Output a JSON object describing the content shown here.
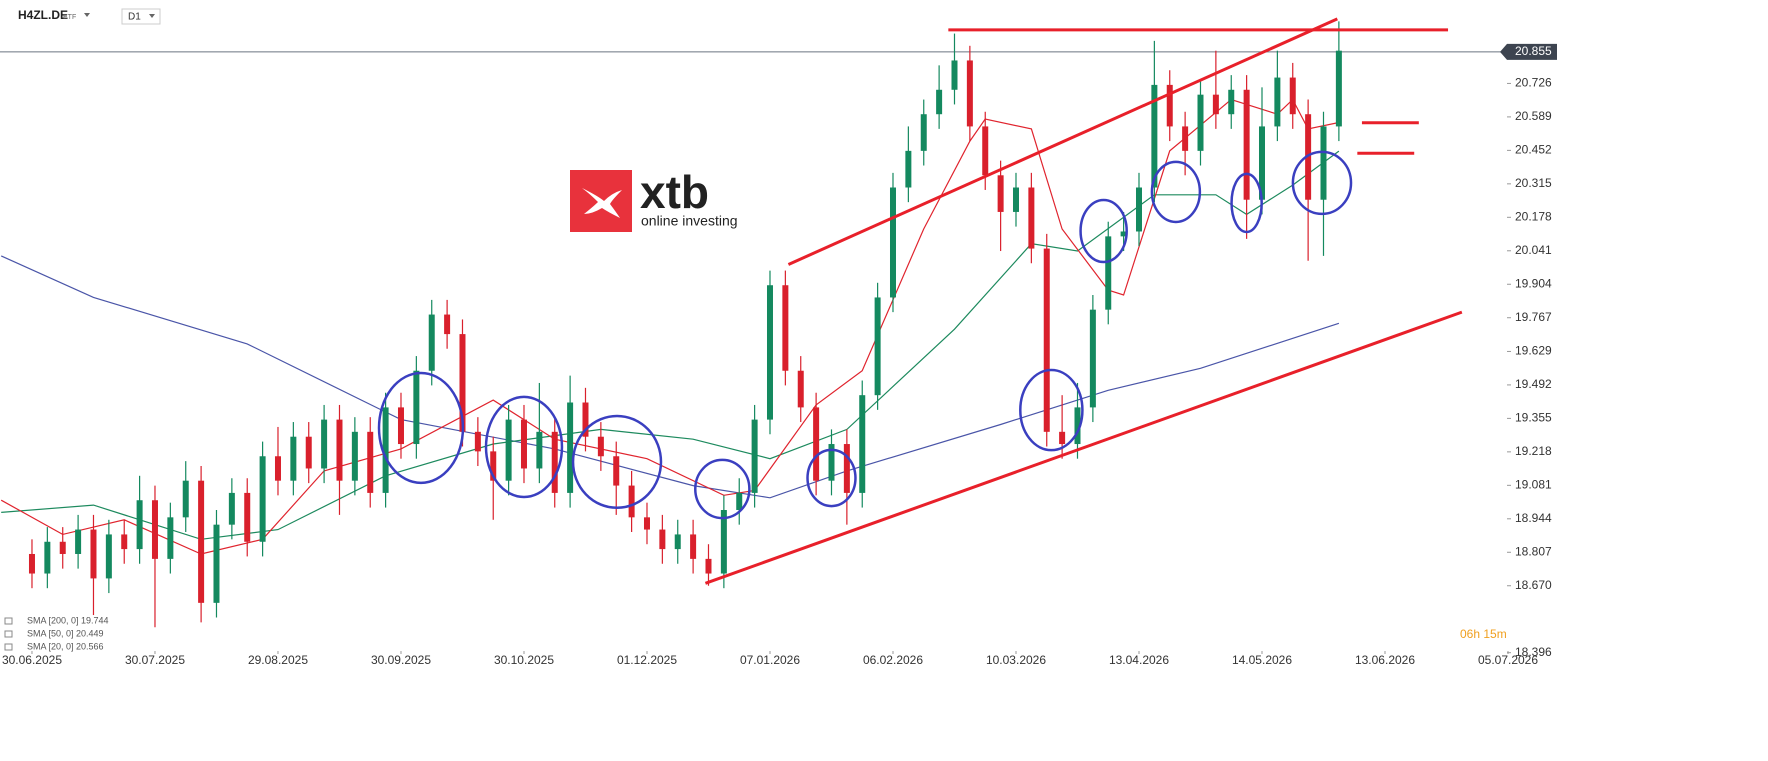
{
  "header": {
    "symbol": "H4ZL.DE",
    "kind": "ETF",
    "interval": "D1"
  },
  "logo": {
    "brand": "xtb",
    "tagline": "online investing"
  },
  "timer": "06h 15m",
  "chart_data": {
    "type": "candlestick",
    "up_color": "#14895f",
    "down_color": "#d9202c",
    "x": [
      0,
      1,
      2,
      3,
      4,
      5,
      6,
      7,
      8,
      9,
      10,
      11,
      12,
      13,
      14,
      15,
      16,
      17,
      18,
      19,
      20,
      21,
      22,
      23,
      24,
      25,
      26,
      27,
      28,
      29,
      30,
      31,
      32,
      33,
      34,
      35,
      36,
      37,
      38,
      39,
      40,
      41,
      42,
      43,
      44,
      45,
      46,
      47,
      48,
      49,
      50,
      51,
      52,
      53,
      54,
      55,
      56,
      57,
      58,
      59,
      60,
      61,
      62,
      63,
      64,
      65,
      66,
      67,
      68,
      69,
      70,
      71,
      72,
      73,
      74,
      75,
      76,
      77,
      78,
      79,
      80,
      81,
      82,
      83,
      84,
      85
    ],
    "open": [
      18.8,
      18.72,
      18.85,
      18.8,
      18.9,
      18.7,
      18.88,
      18.82,
      19.02,
      18.78,
      18.95,
      19.1,
      18.6,
      18.92,
      19.05,
      18.85,
      19.2,
      19.1,
      19.28,
      19.15,
      19.35,
      19.1,
      19.3,
      19.05,
      19.4,
      19.25,
      19.55,
      19.78,
      19.7,
      19.3,
      19.22,
      19.1,
      19.35,
      19.15,
      19.3,
      19.05,
      19.42,
      19.28,
      19.2,
      19.08,
      18.95,
      18.9,
      18.82,
      18.88,
      18.78,
      18.72,
      18.98,
      19.05,
      19.35,
      19.9,
      19.55,
      19.4,
      19.1,
      19.25,
      19.05,
      19.45,
      19.85,
      20.3,
      20.45,
      20.6,
      20.7,
      20.82,
      20.55,
      20.35,
      20.2,
      20.3,
      20.05,
      19.3,
      19.25,
      19.4,
      19.8,
      20.1,
      20.12,
      20.3,
      20.72,
      20.55,
      20.45,
      20.68,
      20.6,
      20.7,
      20.25,
      20.55,
      20.75,
      20.6,
      20.25,
      20.55
    ],
    "high": [
      18.86,
      18.91,
      18.91,
      18.96,
      18.96,
      18.94,
      18.94,
      19.12,
      19.08,
      19.01,
      19.18,
      19.16,
      18.98,
      19.11,
      19.11,
      19.26,
      19.32,
      19.34,
      19.34,
      19.41,
      19.41,
      19.36,
      19.36,
      19.46,
      19.46,
      19.61,
      19.84,
      19.84,
      19.76,
      19.36,
      19.28,
      19.41,
      19.41,
      19.5,
      19.36,
      19.53,
      19.48,
      19.34,
      19.26,
      19.14,
      19.01,
      18.96,
      18.94,
      18.94,
      18.84,
      19.04,
      19.11,
      19.41,
      19.96,
      19.96,
      19.61,
      19.46,
      19.31,
      19.31,
      19.51,
      19.91,
      20.36,
      20.55,
      20.66,
      20.8,
      20.93,
      20.88,
      20.61,
      20.41,
      20.36,
      20.36,
      20.11,
      19.45,
      19.5,
      19.86,
      20.16,
      20.2,
      20.36,
      20.9,
      20.78,
      20.61,
      20.74,
      20.86,
      20.76,
      20.76,
      20.71,
      20.86,
      20.81,
      20.66,
      20.61,
      20.98
    ],
    "low": [
      18.66,
      18.66,
      18.74,
      18.74,
      18.55,
      18.64,
      18.76,
      18.76,
      18.5,
      18.72,
      18.89,
      18.52,
      18.54,
      18.86,
      18.79,
      18.79,
      19.04,
      19.04,
      19.09,
      19.09,
      18.96,
      19.04,
      18.99,
      18.99,
      19.19,
      19.19,
      19.49,
      19.64,
      19.24,
      19.16,
      18.94,
      19.04,
      19.09,
      19.09,
      18.99,
      18.99,
      19.22,
      19.14,
      18.96,
      18.89,
      18.84,
      18.76,
      18.76,
      18.72,
      18.67,
      18.66,
      18.92,
      18.99,
      19.29,
      19.49,
      19.34,
      19.04,
      19.04,
      18.92,
      18.99,
      19.39,
      19.79,
      20.24,
      20.39,
      20.54,
      20.64,
      20.49,
      20.29,
      20.04,
      20.14,
      19.99,
      19.24,
      19.19,
      19.19,
      19.34,
      19.74,
      20.04,
      20.06,
      20.24,
      20.49,
      20.35,
      20.39,
      20.54,
      20.54,
      20.09,
      20.19,
      20.49,
      20.54,
      20.0,
      20.02,
      20.49
    ],
    "close": [
      18.72,
      18.85,
      18.8,
      18.9,
      18.7,
      18.88,
      18.82,
      19.02,
      18.78,
      18.95,
      19.1,
      18.6,
      18.92,
      19.05,
      18.85,
      19.2,
      19.1,
      19.28,
      19.15,
      19.35,
      19.1,
      19.3,
      19.05,
      19.4,
      19.25,
      19.55,
      19.78,
      19.7,
      19.3,
      19.22,
      19.1,
      19.35,
      19.15,
      19.3,
      19.05,
      19.42,
      19.28,
      19.2,
      19.08,
      18.95,
      18.9,
      18.82,
      18.88,
      18.78,
      18.72,
      18.98,
      19.05,
      19.35,
      19.9,
      19.55,
      19.4,
      19.1,
      19.25,
      19.05,
      19.45,
      19.85,
      20.3,
      20.45,
      20.6,
      20.7,
      20.82,
      20.55,
      20.35,
      20.2,
      20.3,
      20.05,
      19.3,
      19.25,
      19.4,
      19.8,
      20.1,
      20.12,
      20.3,
      20.72,
      20.55,
      20.45,
      20.68,
      20.6,
      20.7,
      20.25,
      20.55,
      20.75,
      20.6,
      20.25,
      20.55,
      20.86
    ],
    "series": [
      {
        "name": "SMA [200, 0] 19.744",
        "color": "#4a55a8",
        "x": [
          -2,
          4,
          14,
          24,
          34,
          43,
          48,
          53,
          63,
          70,
          76,
          85
        ],
        "values": [
          20.02,
          19.85,
          19.66,
          19.35,
          19.23,
          19.08,
          19.03,
          19.14,
          19.33,
          19.47,
          19.56,
          19.744
        ]
      },
      {
        "name": "SMA [50, 0] 20.449",
        "color": "#1d8a5e",
        "x": [
          -2,
          4,
          11,
          16,
          23,
          30,
          37,
          43,
          48,
          53,
          60,
          65,
          68,
          73,
          77,
          79,
          82,
          85
        ],
        "values": [
          18.97,
          19.0,
          18.86,
          18.9,
          19.12,
          19.25,
          19.31,
          19.27,
          19.19,
          19.31,
          19.72,
          20.07,
          20.04,
          20.27,
          20.27,
          20.19,
          20.31,
          20.449
        ]
      },
      {
        "name": "SMA [20, 0] 20.566",
        "color": "#e0242e",
        "x": [
          -2,
          2,
          6,
          11,
          15,
          19,
          24,
          30,
          34,
          40,
          45,
          47,
          51,
          54,
          58,
          61,
          62,
          65,
          67,
          70,
          71,
          74,
          78,
          81,
          82,
          83,
          85
        ],
        "values": [
          19.02,
          18.88,
          18.94,
          18.8,
          18.86,
          19.14,
          19.23,
          19.43,
          19.27,
          19.19,
          19.04,
          19.06,
          19.41,
          19.55,
          20.13,
          20.49,
          20.58,
          20.54,
          20.13,
          19.88,
          19.86,
          20.45,
          20.66,
          20.6,
          20.66,
          20.54,
          20.566
        ]
      }
    ],
    "trend_lines": [
      {
        "color": "#e8202a",
        "x": [
          59.6,
          92.1
        ],
        "values": [
          20.945,
          20.945
        ]
      },
      {
        "color": "#e8202a",
        "x": [
          49.2,
          84.9
        ],
        "values": [
          19.985,
          20.99
        ]
      },
      {
        "color": "#e8202a",
        "x": [
          43.8,
          93.0
        ],
        "values": [
          18.68,
          19.79
        ]
      },
      {
        "color": "#e8202a",
        "x": [
          86.5,
          90.2
        ],
        "values": [
          20.565,
          20.565
        ]
      },
      {
        "color": "#e8202a",
        "x": [
          86.2,
          89.9
        ],
        "values": [
          20.44,
          20.44
        ]
      }
    ],
    "highlights": {
      "color": "#3a3fc0",
      "x": [
        25.3,
        32,
        38.05,
        44.9,
        52,
        66.3,
        69.7,
        74.4,
        79,
        83.9
      ],
      "values": [
        19.316,
        19.238,
        19.177,
        19.066,
        19.111,
        19.389,
        20.122,
        20.282,
        20.237,
        20.319
      ],
      "x_radius": [
        2.73,
        2.47,
        2.86,
        1.76,
        1.56,
        2.02,
        1.5,
        1.56,
        0.98,
        1.89
      ],
      "y_radius": [
        0.225,
        0.205,
        0.188,
        0.119,
        0.115,
        0.164,
        0.127,
        0.123,
        0.119,
        0.127
      ]
    },
    "last_price": 20.855,
    "xlim": [
      -2.08,
      96
    ],
    "xticks": [
      {
        "value": 0,
        "label": "30.06.2025"
      },
      {
        "value": 8,
        "label": "30.07.2025"
      },
      {
        "value": 16,
        "label": "29.08.2025"
      },
      {
        "value": 24,
        "label": "30.09.2025"
      },
      {
        "value": 32,
        "label": "30.10.2025"
      },
      {
        "value": 40,
        "label": "01.12.2025"
      },
      {
        "value": 48,
        "label": "07.01.2026"
      },
      {
        "value": 56,
        "label": "06.02.2026"
      },
      {
        "value": 64,
        "label": "10.03.2026"
      },
      {
        "value": 72,
        "label": "13.04.2026"
      },
      {
        "value": 80,
        "label": "14.05.2026"
      },
      {
        "value": 88,
        "label": "13.06.2026"
      },
      {
        "value": 96,
        "label": "05.07.2026"
      }
    ],
    "ylim": [
      18.407,
      21.047
    ],
    "yticks": [
      20.726,
      20.589,
      20.452,
      20.315,
      20.178,
      20.041,
      19.904,
      19.767,
      19.629,
      19.492,
      19.355,
      19.218,
      19.081,
      18.944,
      18.807,
      {
        "value": 18.67,
        "label": "18.670"
      },
      18.396
    ]
  }
}
